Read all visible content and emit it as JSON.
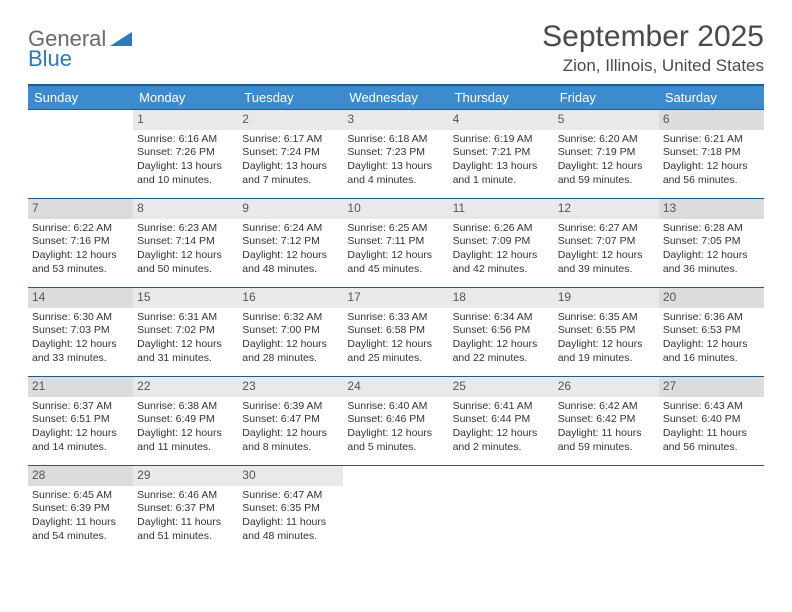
{
  "logo": {
    "general": "General",
    "blue": "Blue"
  },
  "title": "September 2025",
  "location": "Zion, Illinois, United States",
  "colors": {
    "header_bg": "#3d8bcf",
    "header_border": "#235a8c",
    "daynum_bg": "#e9e9e9",
    "daynum_weekend_bg": "#dcdcdc",
    "text": "#333333",
    "logo_gray": "#6a6a6a",
    "logo_blue": "#2f78bd"
  },
  "day_names": [
    "Sunday",
    "Monday",
    "Tuesday",
    "Wednesday",
    "Thursday",
    "Friday",
    "Saturday"
  ],
  "weeks": [
    [
      null,
      {
        "n": "1",
        "sr": "Sunrise: 6:16 AM",
        "ss": "Sunset: 7:26 PM",
        "dl": "Daylight: 13 hours and 10 minutes."
      },
      {
        "n": "2",
        "sr": "Sunrise: 6:17 AM",
        "ss": "Sunset: 7:24 PM",
        "dl": "Daylight: 13 hours and 7 minutes."
      },
      {
        "n": "3",
        "sr": "Sunrise: 6:18 AM",
        "ss": "Sunset: 7:23 PM",
        "dl": "Daylight: 13 hours and 4 minutes."
      },
      {
        "n": "4",
        "sr": "Sunrise: 6:19 AM",
        "ss": "Sunset: 7:21 PM",
        "dl": "Daylight: 13 hours and 1 minute."
      },
      {
        "n": "5",
        "sr": "Sunrise: 6:20 AM",
        "ss": "Sunset: 7:19 PM",
        "dl": "Daylight: 12 hours and 59 minutes."
      },
      {
        "n": "6",
        "sr": "Sunrise: 6:21 AM",
        "ss": "Sunset: 7:18 PM",
        "dl": "Daylight: 12 hours and 56 minutes."
      }
    ],
    [
      {
        "n": "7",
        "sr": "Sunrise: 6:22 AM",
        "ss": "Sunset: 7:16 PM",
        "dl": "Daylight: 12 hours and 53 minutes."
      },
      {
        "n": "8",
        "sr": "Sunrise: 6:23 AM",
        "ss": "Sunset: 7:14 PM",
        "dl": "Daylight: 12 hours and 50 minutes."
      },
      {
        "n": "9",
        "sr": "Sunrise: 6:24 AM",
        "ss": "Sunset: 7:12 PM",
        "dl": "Daylight: 12 hours and 48 minutes."
      },
      {
        "n": "10",
        "sr": "Sunrise: 6:25 AM",
        "ss": "Sunset: 7:11 PM",
        "dl": "Daylight: 12 hours and 45 minutes."
      },
      {
        "n": "11",
        "sr": "Sunrise: 6:26 AM",
        "ss": "Sunset: 7:09 PM",
        "dl": "Daylight: 12 hours and 42 minutes."
      },
      {
        "n": "12",
        "sr": "Sunrise: 6:27 AM",
        "ss": "Sunset: 7:07 PM",
        "dl": "Daylight: 12 hours and 39 minutes."
      },
      {
        "n": "13",
        "sr": "Sunrise: 6:28 AM",
        "ss": "Sunset: 7:05 PM",
        "dl": "Daylight: 12 hours and 36 minutes."
      }
    ],
    [
      {
        "n": "14",
        "sr": "Sunrise: 6:30 AM",
        "ss": "Sunset: 7:03 PM",
        "dl": "Daylight: 12 hours and 33 minutes."
      },
      {
        "n": "15",
        "sr": "Sunrise: 6:31 AM",
        "ss": "Sunset: 7:02 PM",
        "dl": "Daylight: 12 hours and 31 minutes."
      },
      {
        "n": "16",
        "sr": "Sunrise: 6:32 AM",
        "ss": "Sunset: 7:00 PM",
        "dl": "Daylight: 12 hours and 28 minutes."
      },
      {
        "n": "17",
        "sr": "Sunrise: 6:33 AM",
        "ss": "Sunset: 6:58 PM",
        "dl": "Daylight: 12 hours and 25 minutes."
      },
      {
        "n": "18",
        "sr": "Sunrise: 6:34 AM",
        "ss": "Sunset: 6:56 PM",
        "dl": "Daylight: 12 hours and 22 minutes."
      },
      {
        "n": "19",
        "sr": "Sunrise: 6:35 AM",
        "ss": "Sunset: 6:55 PM",
        "dl": "Daylight: 12 hours and 19 minutes."
      },
      {
        "n": "20",
        "sr": "Sunrise: 6:36 AM",
        "ss": "Sunset: 6:53 PM",
        "dl": "Daylight: 12 hours and 16 minutes."
      }
    ],
    [
      {
        "n": "21",
        "sr": "Sunrise: 6:37 AM",
        "ss": "Sunset: 6:51 PM",
        "dl": "Daylight: 12 hours and 14 minutes."
      },
      {
        "n": "22",
        "sr": "Sunrise: 6:38 AM",
        "ss": "Sunset: 6:49 PM",
        "dl": "Daylight: 12 hours and 11 minutes."
      },
      {
        "n": "23",
        "sr": "Sunrise: 6:39 AM",
        "ss": "Sunset: 6:47 PM",
        "dl": "Daylight: 12 hours and 8 minutes."
      },
      {
        "n": "24",
        "sr": "Sunrise: 6:40 AM",
        "ss": "Sunset: 6:46 PM",
        "dl": "Daylight: 12 hours and 5 minutes."
      },
      {
        "n": "25",
        "sr": "Sunrise: 6:41 AM",
        "ss": "Sunset: 6:44 PM",
        "dl": "Daylight: 12 hours and 2 minutes."
      },
      {
        "n": "26",
        "sr": "Sunrise: 6:42 AM",
        "ss": "Sunset: 6:42 PM",
        "dl": "Daylight: 11 hours and 59 minutes."
      },
      {
        "n": "27",
        "sr": "Sunrise: 6:43 AM",
        "ss": "Sunset: 6:40 PM",
        "dl": "Daylight: 11 hours and 56 minutes."
      }
    ],
    [
      {
        "n": "28",
        "sr": "Sunrise: 6:45 AM",
        "ss": "Sunset: 6:39 PM",
        "dl": "Daylight: 11 hours and 54 minutes."
      },
      {
        "n": "29",
        "sr": "Sunrise: 6:46 AM",
        "ss": "Sunset: 6:37 PM",
        "dl": "Daylight: 11 hours and 51 minutes."
      },
      {
        "n": "30",
        "sr": "Sunrise: 6:47 AM",
        "ss": "Sunset: 6:35 PM",
        "dl": "Daylight: 11 hours and 48 minutes."
      },
      null,
      null,
      null,
      null
    ]
  ]
}
